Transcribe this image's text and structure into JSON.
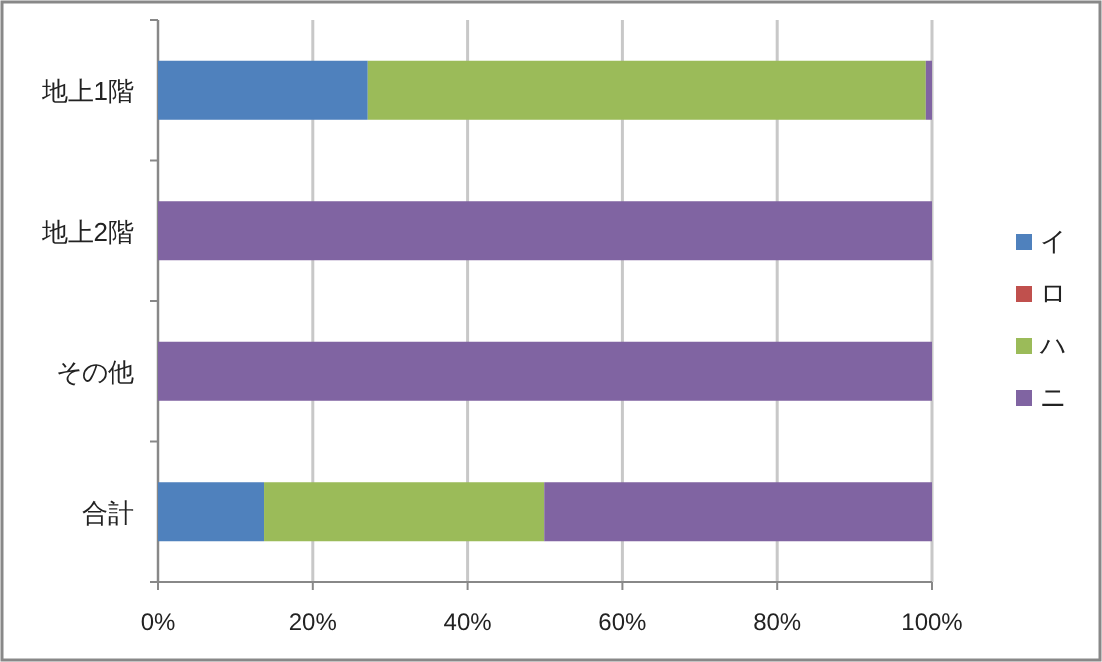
{
  "chart_data": {
    "type": "bar",
    "orientation": "horizontal",
    "stacked": true,
    "categories": [
      "地上1階",
      "地上2階",
      "その他",
      "合計"
    ],
    "series": [
      {
        "name": "イ",
        "color": "#4f81bd",
        "values": [
          27.1,
          0,
          0,
          13.7
        ]
      },
      {
        "name": "ロ",
        "color": "#c0504d",
        "values": [
          0,
          0,
          0,
          0
        ]
      },
      {
        "name": "ハ",
        "color": "#9bbb59",
        "values": [
          72.1,
          0,
          0,
          36.2
        ]
      },
      {
        "name": "ニ",
        "color": "#8064a2",
        "values": [
          0.8,
          100,
          100,
          50.1
        ]
      }
    ],
    "xlim": [
      0,
      100
    ],
    "xticks": [
      {
        "value": 0,
        "label": "0%"
      },
      {
        "value": 20,
        "label": "20%"
      },
      {
        "value": 40,
        "label": "40%"
      },
      {
        "value": 60,
        "label": "60%"
      },
      {
        "value": 80,
        "label": "80%"
      },
      {
        "value": 100,
        "label": "100%"
      }
    ],
    "grid": "x",
    "legend": "right"
  }
}
